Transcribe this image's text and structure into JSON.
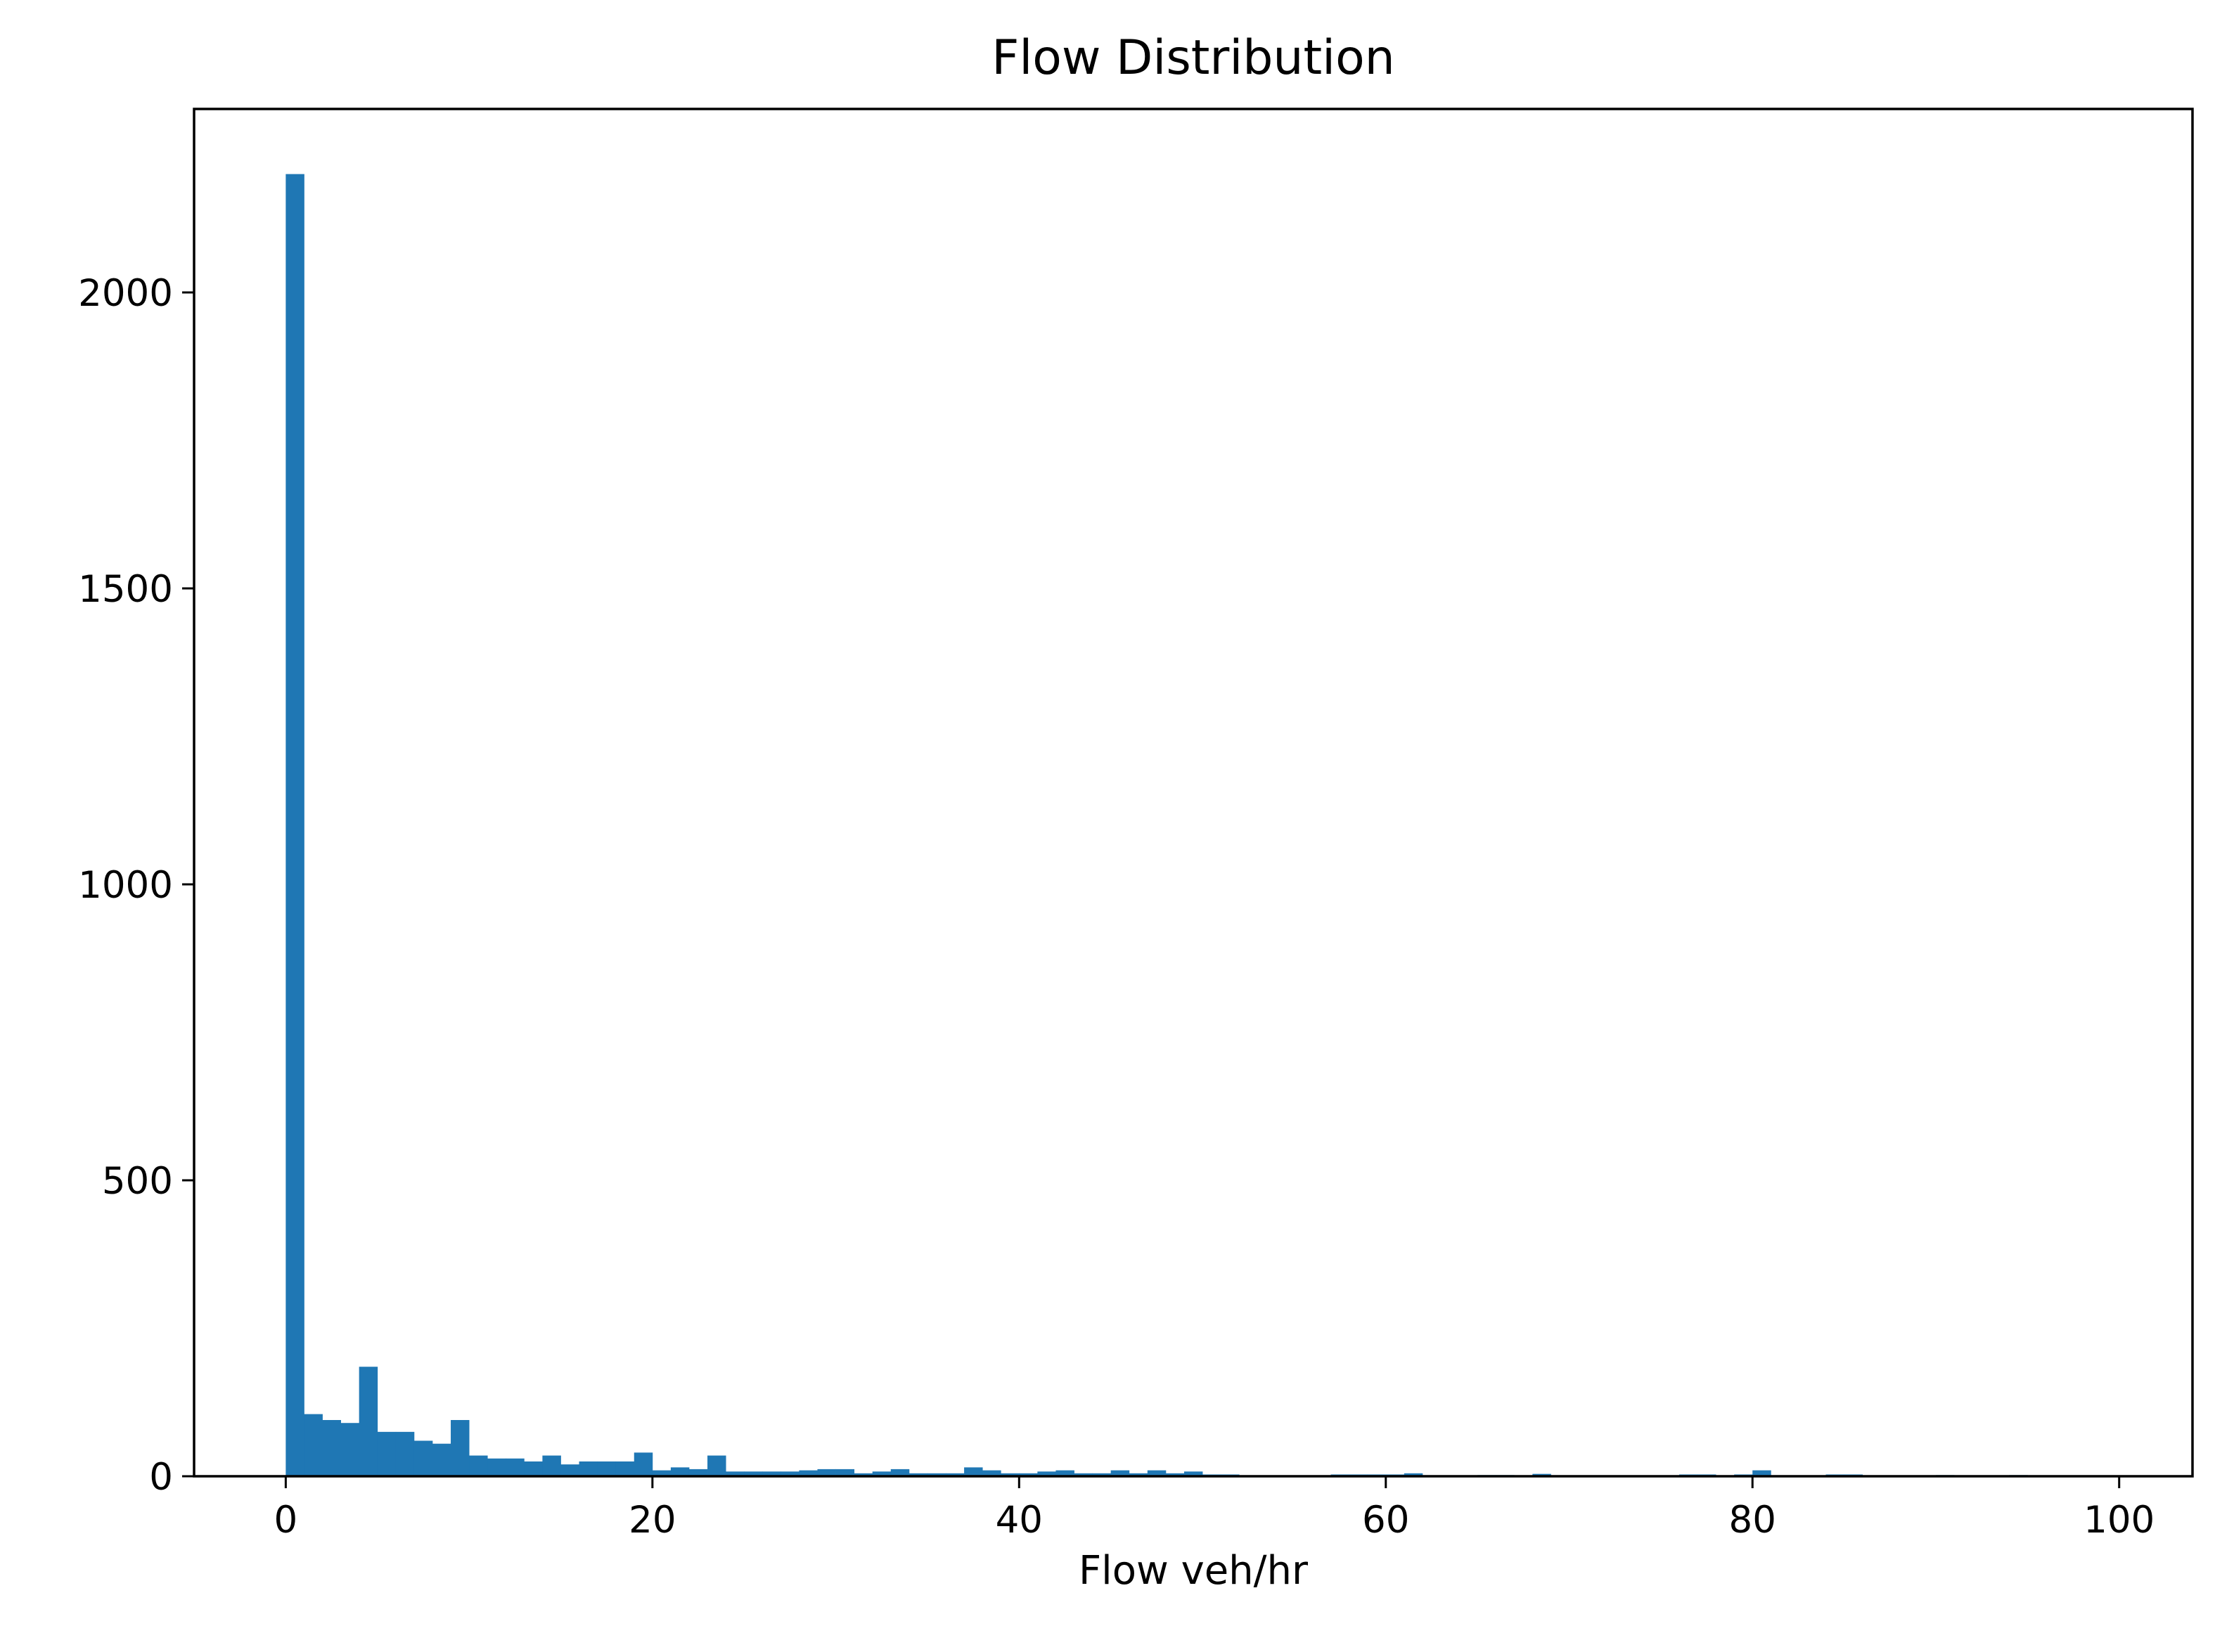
{
  "chart_data": {
    "type": "bar",
    "title": "Flow Distribution",
    "xlabel": "Flow veh/hr",
    "ylabel": "",
    "xlim": [
      -5,
      104
    ],
    "ylim": [
      0,
      2310
    ],
    "grid": false,
    "legend": "none",
    "bar_color": "#1f77b4",
    "x_ticks": [
      0,
      20,
      40,
      60,
      80,
      100
    ],
    "x_tick_labels": [
      "0",
      "20",
      "40",
      "60",
      "80",
      "100"
    ],
    "y_ticks": [
      0,
      500,
      1000,
      1500,
      2000
    ],
    "y_tick_labels": [
      "0",
      "500",
      "1000",
      "1500",
      "2000"
    ],
    "bin_start": 0,
    "bin_width": 1,
    "values": [
      2200,
      105,
      95,
      90,
      185,
      75,
      75,
      60,
      55,
      95,
      35,
      30,
      30,
      25,
      35,
      20,
      25,
      25,
      25,
      40,
      10,
      15,
      12,
      35,
      8,
      8,
      8,
      8,
      10,
      12,
      12,
      5,
      8,
      12,
      5,
      5,
      5,
      15,
      10,
      5,
      5,
      8,
      10,
      5,
      5,
      10,
      5,
      10,
      5,
      8,
      3,
      3,
      0,
      0,
      0,
      0,
      0,
      3,
      3,
      3,
      3,
      5,
      0,
      0,
      0,
      2,
      2,
      0,
      4,
      0,
      0,
      0,
      0,
      0,
      0,
      0,
      3,
      3,
      0,
      3,
      10,
      0,
      0,
      0,
      3,
      3,
      0,
      0,
      0,
      0,
      2,
      0,
      0,
      0,
      2,
      0,
      0,
      0,
      0,
      0
    ]
  }
}
